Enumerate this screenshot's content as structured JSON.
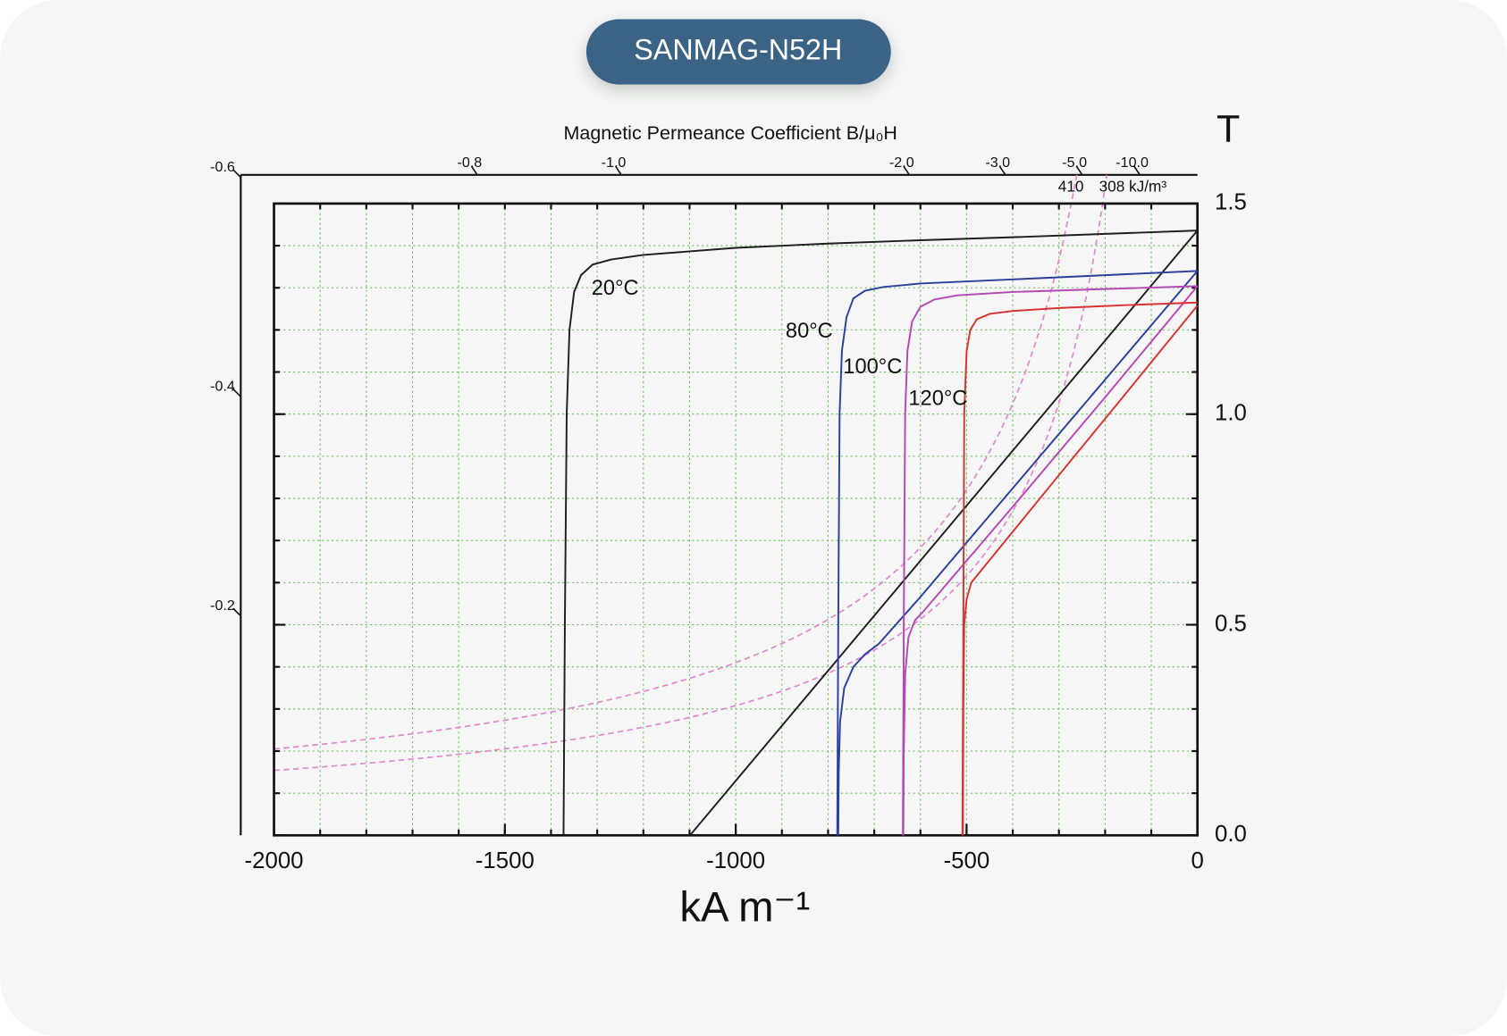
{
  "chart_data": {
    "type": "line",
    "title": "SANMAG-N52H",
    "top_axis_title": "Magnetic Permeance Coefficient B/μ₀H",
    "xlabel": "kA m⁻¹",
    "ylabel": "T",
    "xlim": [
      -2000,
      0
    ],
    "ylim": [
      0,
      1.5
    ],
    "xticks": [
      -2000,
      -1500,
      -1000,
      -500,
      0
    ],
    "yticks": [
      {
        "value": 0,
        "label": "0.0"
      },
      0.5,
      {
        "value": 1,
        "label": "1.0"
      },
      1.5
    ],
    "grid": true,
    "xgrid": [
      -1900,
      -1800,
      -1700,
      -1600,
      -1500,
      -1400,
      -1300,
      -1200,
      -1100,
      -1000,
      -900,
      -800,
      -700,
      -600,
      -500,
      -400,
      -300,
      -200,
      -100
    ],
    "ygrid": [
      0.1,
      0.2,
      0.3,
      0.4,
      0.5,
      0.6,
      0.7,
      0.8,
      0.9,
      1.0,
      1.1,
      1.2,
      1.3,
      1.4
    ],
    "outer_xmin": -2072,
    "outer_ymax": 1.568,
    "permeance_ticks": [
      -0.6,
      -0.4,
      -0.2,
      -0.8,
      {
        "value": -1,
        "label": "-1.0"
      },
      {
        "value": -2,
        "label": "-2.0"
      },
      {
        "value": -3,
        "label": "-3.0"
      },
      {
        "value": -5,
        "label": "-5.0"
      },
      {
        "value": -10,
        "label": "-10.0"
      }
    ],
    "energy_products": {
      "values": [
        410,
        308
      ],
      "value_labels": [
        "410",
        "308 kJ/m³"
      ],
      "color": "#e08ad0"
    },
    "series": [
      {
        "name": "20°C",
        "color": "#1e1e1e",
        "x": [
          -1373,
          -1370,
          -1366,
          -1360,
          -1350,
          -1335,
          -1310,
          -1270,
          -1200,
          -1000,
          -800,
          -600,
          -400,
          -200,
          0
        ],
        "values": [
          0,
          0.5,
          1.0,
          1.2,
          1.29,
          1.33,
          1.355,
          1.367,
          1.378,
          1.395,
          1.405,
          1.413,
          1.42,
          1.428,
          1.436
        ]
      },
      {
        "color": "#1e1e1e",
        "x": [
          -1099,
          0
        ],
        "values": [
          0,
          1.436
        ]
      },
      {
        "name": "80°C",
        "color": "#2b3f9c",
        "x": [
          -780,
          -778,
          -775,
          -770,
          -760,
          -745,
          -720,
          -680,
          -600,
          -400,
          -200,
          0
        ],
        "values": [
          0,
          0.5,
          1.0,
          1.15,
          1.23,
          1.275,
          1.293,
          1.302,
          1.31,
          1.32,
          1.33,
          1.34
        ]
      },
      {
        "color": "#2b3f9c",
        "x": [
          -778,
          -777,
          -774,
          -765,
          -745,
          -720,
          -690,
          -600,
          -400,
          -200,
          0
        ],
        "values": [
          0,
          0.15,
          0.27,
          0.35,
          0.4,
          0.43,
          0.455,
          0.566,
          0.824,
          1.082,
          1.34
        ]
      },
      {
        "name": "100°C",
        "color": "#b548b5",
        "x": [
          -638,
          -636,
          -633,
          -628,
          -618,
          -600,
          -570,
          -520,
          -400,
          -200,
          0
        ],
        "values": [
          0,
          0.5,
          1.0,
          1.15,
          1.22,
          1.255,
          1.272,
          1.282,
          1.29,
          1.297,
          1.304
        ]
      },
      {
        "color": "#b548b5",
        "x": [
          -637,
          -636,
          -633,
          -626,
          -612,
          -595,
          -400,
          -200,
          0
        ],
        "values": [
          0,
          0.2,
          0.38,
          0.47,
          0.51,
          0.53,
          0.78,
          1.04,
          1.304
        ]
      },
      {
        "name": "120°C",
        "color": "#d93232",
        "x": [
          -509,
          -507,
          -505,
          -500,
          -492,
          -478,
          -450,
          -400,
          -300,
          -150,
          0
        ],
        "values": [
          0,
          0.5,
          1.0,
          1.15,
          1.2,
          1.225,
          1.238,
          1.245,
          1.252,
          1.259,
          1.265
        ]
      },
      {
        "color": "#d93232",
        "x": [
          -508,
          -507,
          -505,
          -500,
          -490,
          -470,
          -300,
          -150,
          0
        ],
        "values": [
          0,
          0.3,
          0.5,
          0.56,
          0.6,
          0.627,
          0.855,
          1.056,
          1.258
        ]
      }
    ]
  }
}
